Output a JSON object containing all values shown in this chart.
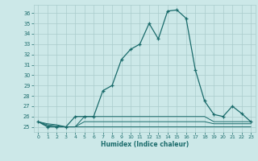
{
  "title": "",
  "xlabel": "Humidex (Indice chaleur)",
  "background_color": "#cce8e8",
  "grid_color": "#aacccc",
  "line_color": "#1a6b6b",
  "hours": [
    0,
    1,
    2,
    3,
    4,
    5,
    6,
    7,
    8,
    9,
    10,
    11,
    12,
    13,
    14,
    15,
    16,
    17,
    18,
    19,
    20,
    21,
    22,
    23
  ],
  "humidex_main": [
    25.5,
    25.0,
    25.0,
    25.0,
    26.0,
    26.0,
    26.0,
    28.5,
    29.0,
    31.5,
    32.5,
    33.0,
    35.0,
    33.5,
    36.2,
    36.3,
    35.5,
    30.5,
    27.5,
    26.2,
    26.0,
    27.0,
    26.3,
    25.5
  ],
  "humidex_line2": [
    25.5,
    25.3,
    25.2,
    25.0,
    25.0,
    26.0,
    26.0,
    26.0,
    26.0,
    26.0,
    26.0,
    26.0,
    26.0,
    26.0,
    26.0,
    26.0,
    26.0,
    26.0,
    26.0,
    25.5,
    25.5,
    25.5,
    25.5,
    25.5
  ],
  "humidex_line3": [
    25.5,
    25.2,
    25.1,
    25.0,
    25.0,
    25.5,
    25.5,
    25.5,
    25.5,
    25.5,
    25.5,
    25.5,
    25.5,
    25.5,
    25.5,
    25.5,
    25.5,
    25.5,
    25.5,
    25.3,
    25.3,
    25.3,
    25.3,
    25.3
  ],
  "humidex_line4": [
    25.5,
    25.1,
    25.0,
    25.0,
    25.0,
    25.0,
    25.0,
    25.0,
    25.0,
    25.0,
    25.0,
    25.0,
    25.0,
    25.0,
    25.0,
    25.0,
    25.0,
    25.0,
    25.0,
    25.0,
    25.0,
    25.0,
    25.0,
    25.0
  ],
  "ylim": [
    24.5,
    36.8
  ],
  "xlim": [
    -0.5,
    23.5
  ],
  "yticks": [
    25,
    26,
    27,
    28,
    29,
    30,
    31,
    32,
    33,
    34,
    35,
    36
  ],
  "xticks": [
    0,
    1,
    2,
    3,
    4,
    5,
    6,
    7,
    8,
    9,
    10,
    11,
    12,
    13,
    14,
    15,
    16,
    17,
    18,
    19,
    20,
    21,
    22,
    23
  ]
}
